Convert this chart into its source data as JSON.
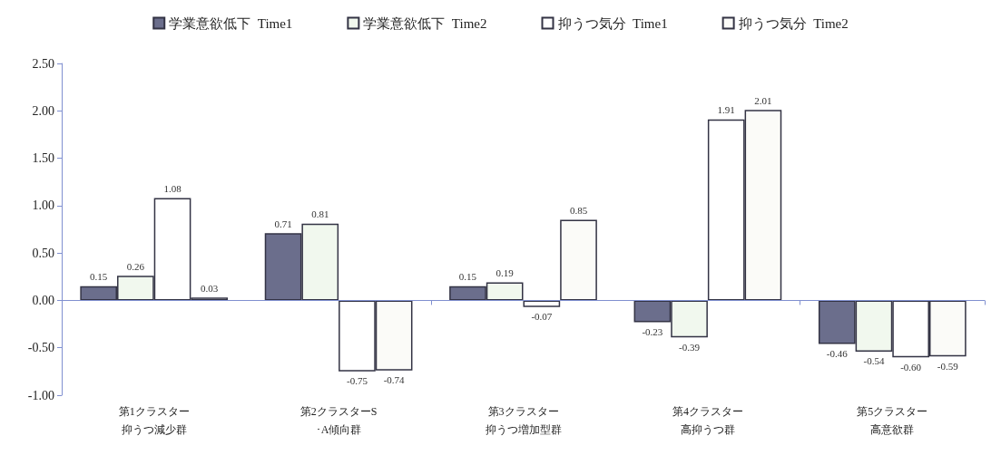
{
  "chart_data": {
    "type": "bar",
    "categories": [
      "第1クラスター抑うつ減少群",
      "第2クラスターS･A傾向群",
      "第3クラスター抑うつ増加型群",
      "第4クラスター高抑うつ群",
      "第5クラスター高意欲群"
    ],
    "ref_lines": [
      {
        "axis": "y",
        "value": 0,
        "color": "#8090d0"
      }
    ],
    "series": [
      {
        "name": "学業意欲低下  Time1",
        "color": "#6b6e8c",
        "values": [
          0.15,
          0.71,
          0.15,
          -0.23,
          -0.46
        ],
        "value_labels": [
          "0.15",
          "0.71",
          "0.15",
          "-0.23",
          "-0.46"
        ]
      },
      {
        "name": "学業意欲低下  Time2",
        "color": "#f1f8ee",
        "values": [
          0.26,
          0.81,
          0.19,
          -0.39,
          -0.54
        ],
        "value_labels": [
          "0.26",
          "0.81",
          "0.19",
          "-0.39",
          "-0.54"
        ]
      },
      {
        "name": "抑うつ気分  Time1",
        "color": "#ffffff",
        "values": [
          1.08,
          -0.75,
          -0.07,
          1.91,
          -0.6
        ],
        "value_labels": [
          "1.08",
          "-0.75",
          "-0.07",
          "1.91",
          "-0.60"
        ]
      },
      {
        "name": "抑うつ気分  Time2",
        "color": "#fbfbf8",
        "values": [
          0.03,
          -0.74,
          0.85,
          2.01,
          -0.59
        ],
        "value_labels": [
          "0.03",
          "-0.74",
          "0.85",
          "2.01",
          "-0.59"
        ]
      }
    ],
    "ylim": [
      -1,
      2.5
    ],
    "yticks": [
      {
        "value": -1,
        "label": "-1.00"
      },
      {
        "value": -0.5,
        "label": "-0.50"
      },
      {
        "value": 0,
        "label": "0.00"
      },
      {
        "value": 0.5,
        "label": "0.50"
      },
      {
        "value": 1,
        "label": "1.00"
      },
      {
        "value": 1.5,
        "label": "1.50"
      },
      {
        "value": 2,
        "label": "2.00"
      },
      {
        "value": 2.5,
        "label": "2.50"
      }
    ],
    "grid": false,
    "legend": "top"
  }
}
